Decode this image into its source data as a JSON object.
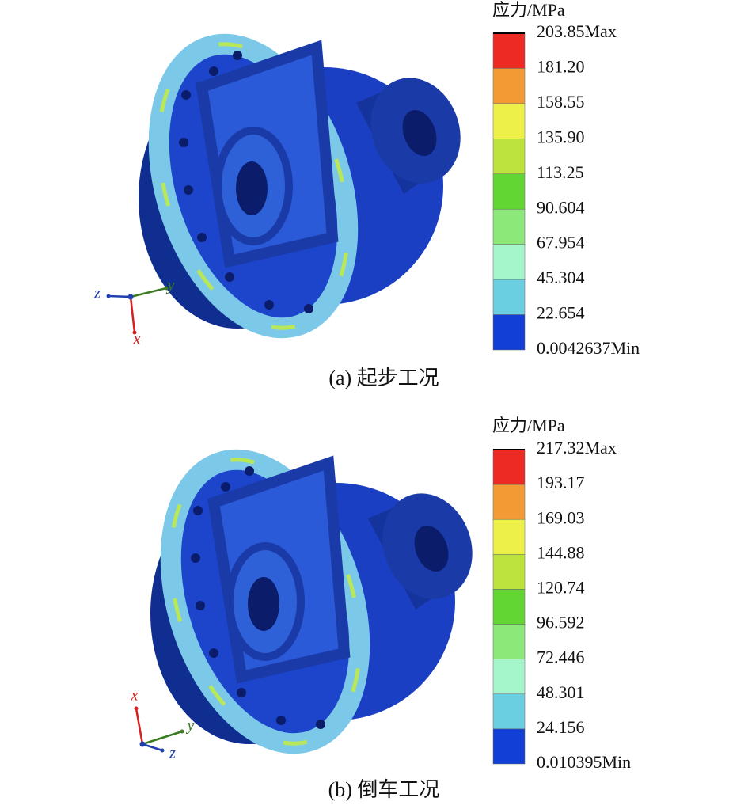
{
  "panels": [
    {
      "legend_title": "应力/MPa",
      "legend_labels": [
        "203.85Max",
        "181.20",
        "158.55",
        "135.90",
        "113.25",
        "90.604",
        "67.954",
        "45.304",
        "22.654",
        "0.0042637Min"
      ],
      "legend_colors": [
        "#ee2a24",
        "#f49a34",
        "#eef04a",
        "#bce43c",
        "#62d632",
        "#8ce878",
        "#a6f6cc",
        "#6acfe0",
        "#1240d6"
      ],
      "axes": {
        "x": "x",
        "y": "y",
        "z": "z"
      },
      "caption": "(a)  起步工况"
    },
    {
      "legend_title": "应力/MPa",
      "legend_labels": [
        "217.32Max",
        "193.17",
        "169.03",
        "144.88",
        "120.74",
        "96.592",
        "72.446",
        "48.301",
        "24.156",
        "0.010395Min"
      ],
      "legend_colors": [
        "#ee2a24",
        "#f49a34",
        "#eef04a",
        "#bce43c",
        "#62d632",
        "#8ce878",
        "#a6f6cc",
        "#6acfe0",
        "#1240d6"
      ],
      "axes": {
        "x": "x",
        "y": "y",
        "z": "z"
      },
      "caption": "(b)  倒车工况"
    }
  ]
}
